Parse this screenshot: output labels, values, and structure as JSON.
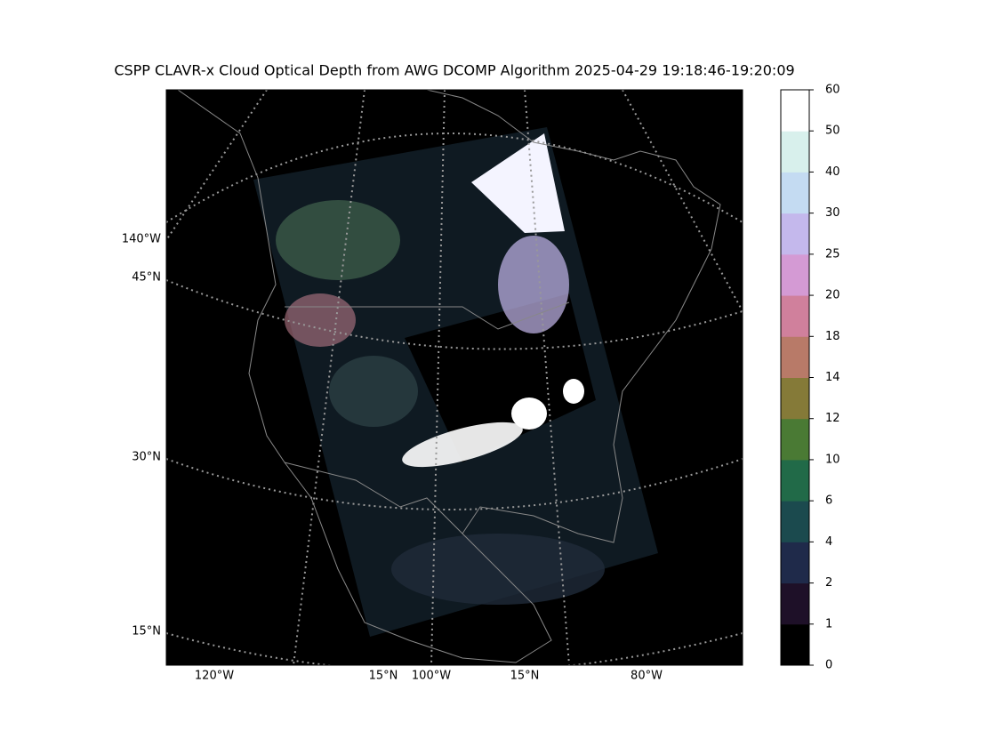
{
  "title": "CSPP CLAVR-x Cloud Optical Depth from AWG DCOMP Algorithm 2025-04-29 19:18:46-19:20:09",
  "map": {
    "left_labels": [
      "140°W",
      "45°N",
      "30°N",
      "15°N"
    ],
    "bottom_labels": [
      "120°W",
      "15°N",
      "100°W",
      "15°N",
      "80°W"
    ]
  },
  "colorbar": {
    "ticks": [
      0,
      1,
      2,
      4,
      6,
      10,
      12,
      14,
      18,
      20,
      25,
      30,
      40,
      50,
      60
    ],
    "colors": [
      "#000000",
      "#1e1028",
      "#1f2a4a",
      "#1b4a4e",
      "#216a48",
      "#4a7a34",
      "#857a38",
      "#b87a68",
      "#d0809c",
      "#d49ad4",
      "#c4b8ec",
      "#c4dbf2",
      "#d8f0ec",
      "#ffffff"
    ]
  }
}
